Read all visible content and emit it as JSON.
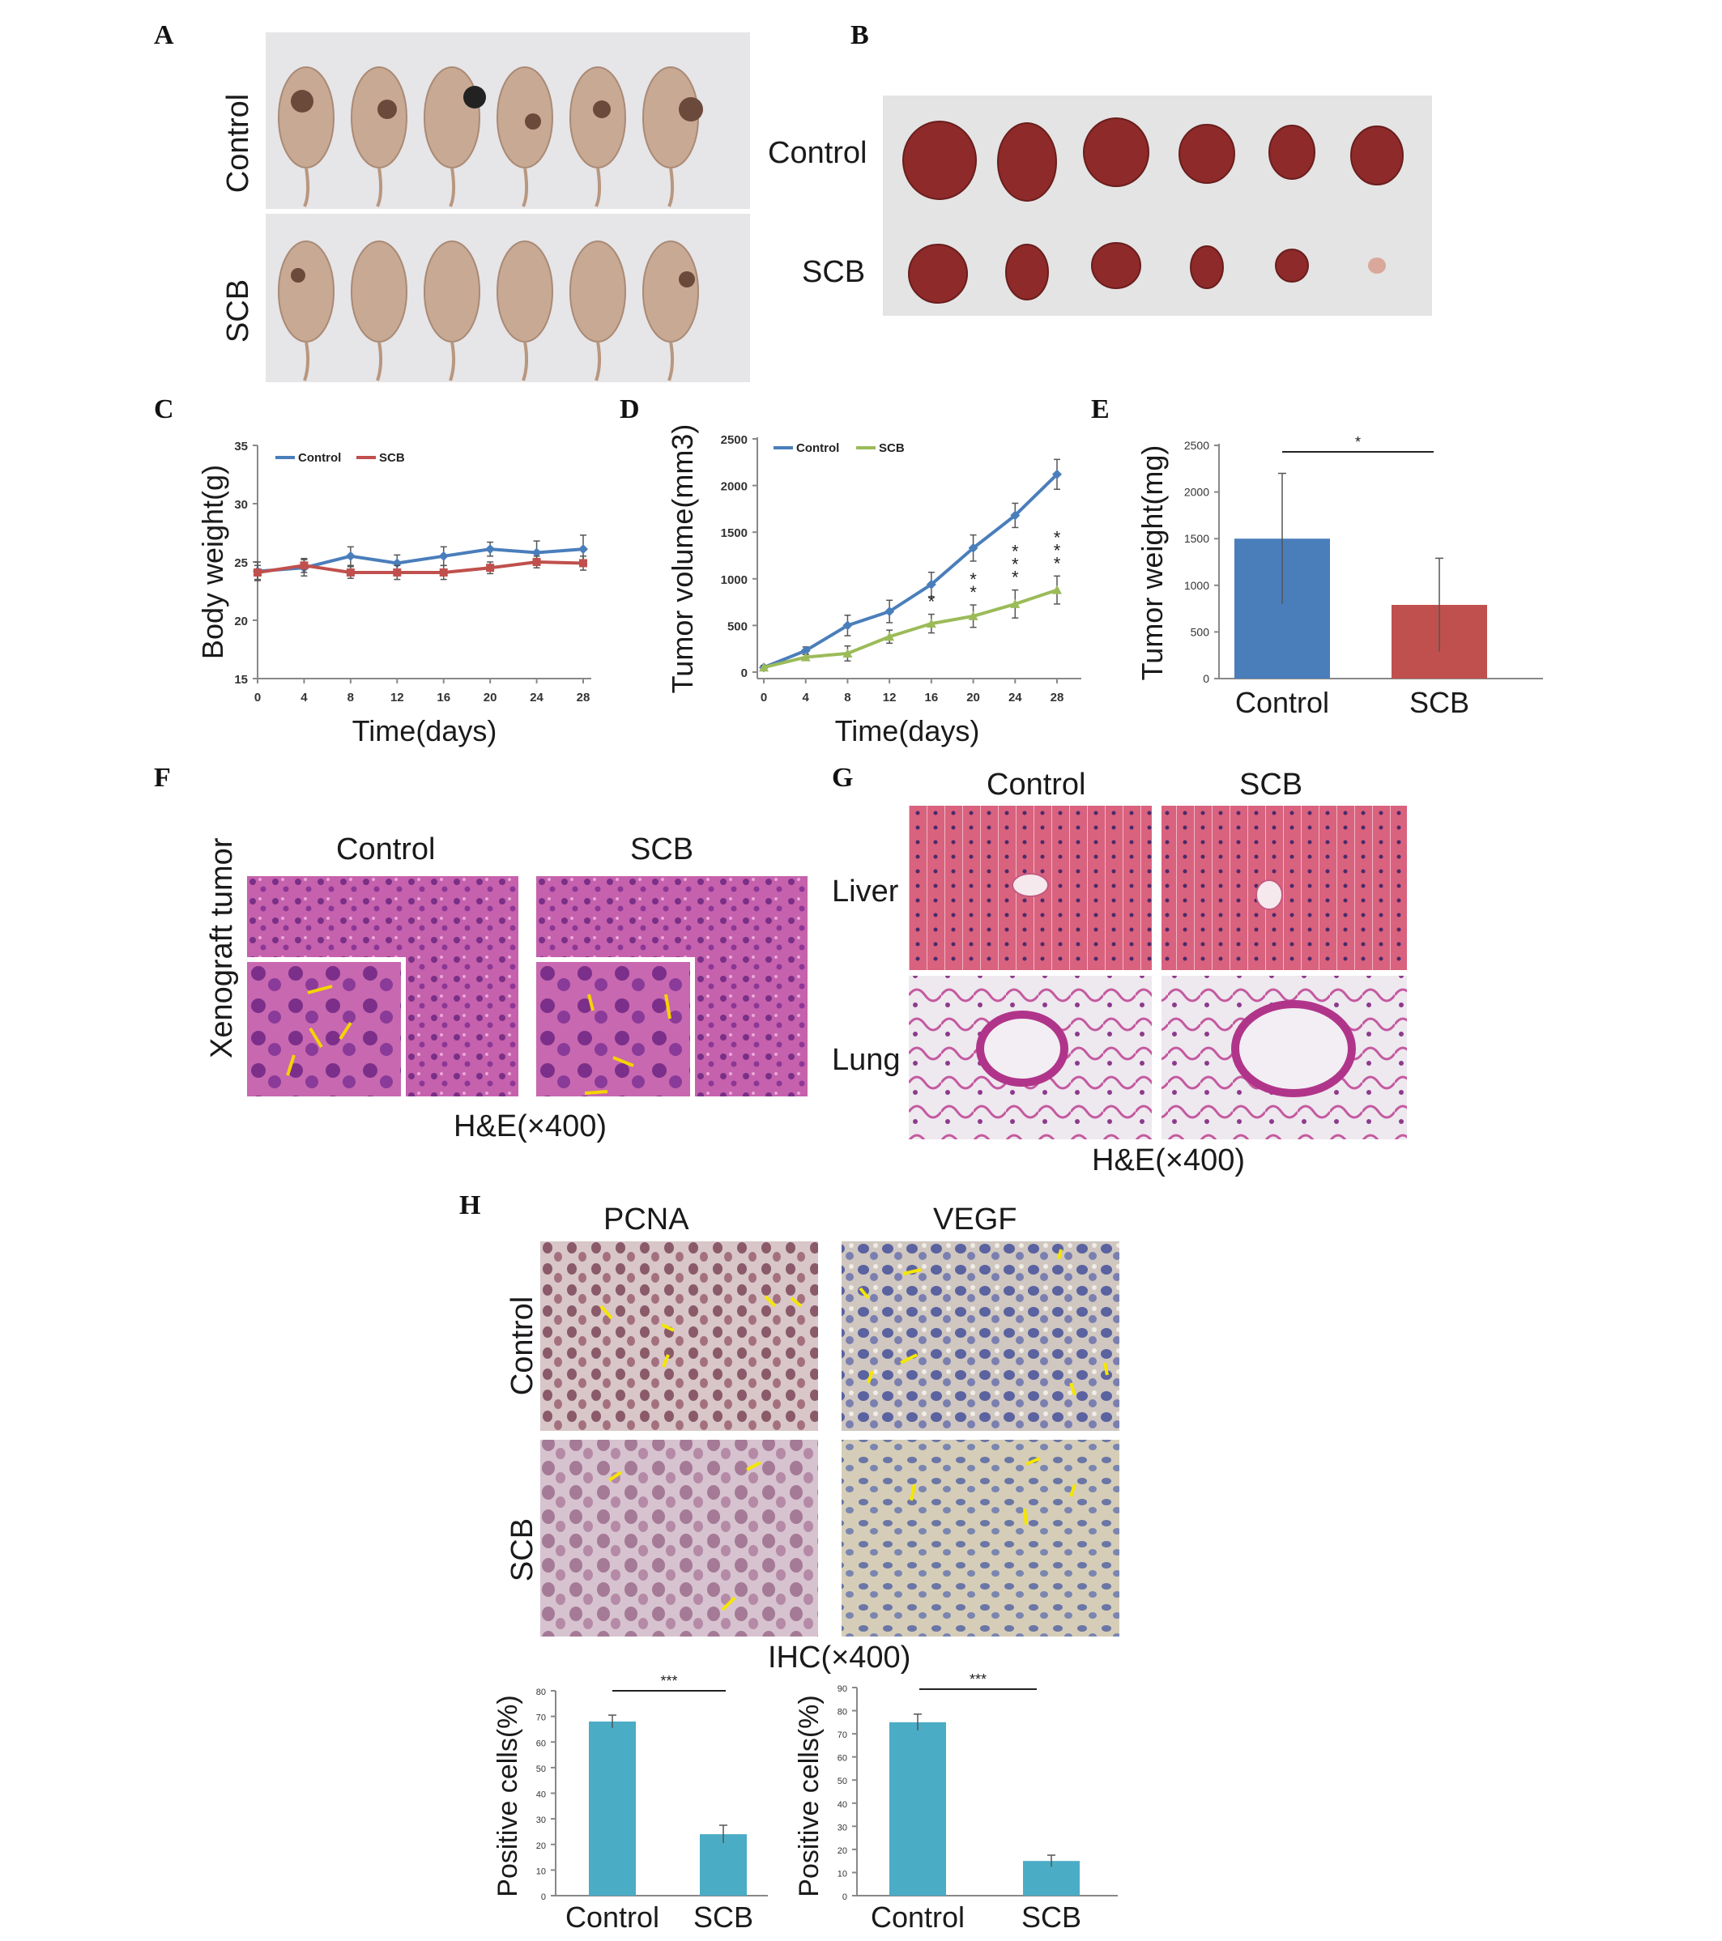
{
  "panels": {
    "A": {
      "letter": "A",
      "row_labels": [
        "Control",
        "SCB"
      ]
    },
    "B": {
      "letter": "B",
      "row_labels": [
        "Control",
        "SCB"
      ]
    },
    "C": {
      "letter": "C"
    },
    "D": {
      "letter": "D"
    },
    "E": {
      "letter": "E"
    },
    "F": {
      "letter": "F",
      "col_labels": [
        "Control",
        "SCB"
      ],
      "row_label": "Xenograft tumor",
      "caption": "H&E(×400)"
    },
    "G": {
      "letter": "G",
      "col_labels": [
        "Control",
        "SCB"
      ],
      "row_labels": [
        "Liver",
        "Lung"
      ],
      "caption": "H&E(×400)"
    },
    "H": {
      "letter": "H",
      "col_labels": [
        "PCNA",
        "VEGF"
      ],
      "row_labels": [
        "Control",
        "SCB"
      ],
      "caption": "IHC(×400)"
    }
  },
  "chart_data": [
    {
      "id": "C",
      "type": "line",
      "ylabel": "Body weight(g)",
      "xlabel": "Time(days)",
      "x": [
        0,
        4,
        8,
        12,
        16,
        20,
        24,
        28
      ],
      "xticks": [
        "0",
        "4",
        "8",
        "12",
        "16",
        "20",
        "24",
        "28"
      ],
      "ylim": [
        15,
        35
      ],
      "yticks": [
        "15",
        "20",
        "25",
        "30",
        "35"
      ],
      "legend_position": "top-left",
      "series": [
        {
          "name": "Control",
          "color": "#4a7ebb",
          "marker": "diamond",
          "values": [
            24.2,
            24.5,
            25.5,
            24.9,
            25.5,
            26.1,
            25.8,
            26.1
          ],
          "err": [
            0.8,
            0.7,
            0.8,
            0.7,
            0.8,
            0.6,
            1.0,
            1.2
          ]
        },
        {
          "name": "SCB",
          "color": "#c0504d",
          "marker": "square",
          "values": [
            24.1,
            24.7,
            24.1,
            24.1,
            24.1,
            24.5,
            25.0,
            24.9
          ],
          "err": [
            0.6,
            0.6,
            0.5,
            0.6,
            0.6,
            0.5,
            0.5,
            0.6
          ]
        }
      ]
    },
    {
      "id": "D",
      "type": "line",
      "ylabel": "Tumor volume(mm3)",
      "xlabel": "Time(days)",
      "x": [
        0,
        4,
        8,
        12,
        16,
        20,
        24,
        28
      ],
      "xticks": [
        "0",
        "4",
        "8",
        "12",
        "16",
        "20",
        "24",
        "28"
      ],
      "ylim": [
        0,
        2500
      ],
      "yticks": [
        "0",
        "500",
        "1000",
        "1500",
        "2000",
        "2500"
      ],
      "legend_position": "top-left",
      "significance": [
        {
          "x": 16,
          "label": "*"
        },
        {
          "x": 20,
          "label": "**"
        },
        {
          "x": 24,
          "label": "***"
        },
        {
          "x": 28,
          "label": "***"
        }
      ],
      "series": [
        {
          "name": "Control",
          "color": "#4a7ebb",
          "marker": "diamond",
          "values": [
            50,
            230,
            500,
            650,
            940,
            1330,
            1680,
            2120
          ],
          "err": [
            20,
            40,
            110,
            120,
            130,
            140,
            130,
            160
          ]
        },
        {
          "name": "SCB",
          "color": "#9bbb59",
          "marker": "triangle",
          "values": [
            50,
            160,
            200,
            380,
            520,
            600,
            730,
            880
          ],
          "err": [
            20,
            30,
            80,
            70,
            100,
            120,
            150,
            150
          ]
        }
      ]
    },
    {
      "id": "E",
      "type": "bar",
      "ylabel": "Tumor weight(mg)",
      "categories": [
        "Control",
        "SCB"
      ],
      "values": [
        1500,
        790
      ],
      "err": [
        700,
        500
      ],
      "colors": [
        "#4a7ebb",
        "#c0504d"
      ],
      "ylim": [
        0,
        2500
      ],
      "yticks": [
        "0",
        "500",
        "1000",
        "1500",
        "2000",
        "2500"
      ],
      "significance": "*"
    },
    {
      "id": "H-PCNA",
      "type": "bar",
      "ylabel": "Positive cells(%)",
      "categories": [
        "Control",
        "SCB"
      ],
      "values": [
        68,
        24
      ],
      "err": [
        2.5,
        3.5
      ],
      "colors": [
        "#4bacc6",
        "#4bacc6"
      ],
      "ylim": [
        0,
        80
      ],
      "yticks": [
        "0",
        "10",
        "20",
        "30",
        "40",
        "50",
        "60",
        "70",
        "80"
      ],
      "significance": "***"
    },
    {
      "id": "H-VEGF",
      "type": "bar",
      "ylabel": "Positive cells(%)",
      "categories": [
        "Control",
        "SCB"
      ],
      "values": [
        75,
        15
      ],
      "err": [
        3.5,
        2.5
      ],
      "colors": [
        "#4bacc6",
        "#4bacc6"
      ],
      "ylim": [
        0,
        90
      ],
      "yticks": [
        "0",
        "10",
        "20",
        "30",
        "40",
        "50",
        "60",
        "70",
        "80",
        "90"
      ],
      "significance": "***"
    }
  ]
}
